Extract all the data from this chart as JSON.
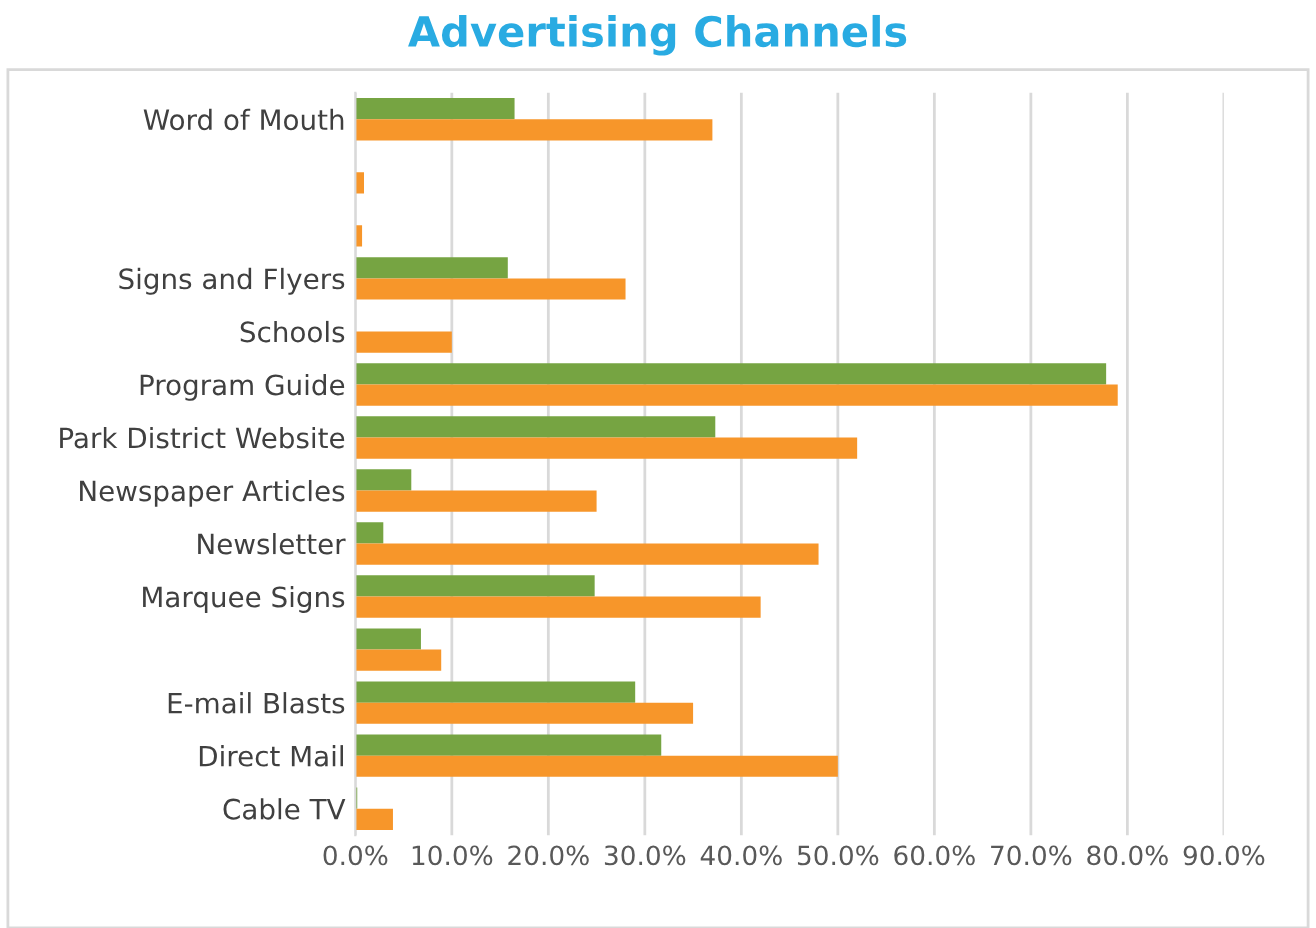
{
  "chart_data": {
    "type": "bar",
    "orientation": "horizontal",
    "title": "Advertising Channels",
    "categories": [
      "Word of Mouth",
      null,
      null,
      "Signs and Flyers",
      "Schools",
      "Program Guide",
      "Park District Website",
      "Newspaper Articles",
      "Newsletter",
      "Marquee Signs",
      null,
      "E-mail Blasts",
      "Direct Mail",
      "Cable TV"
    ],
    "series": [
      {
        "color": "#76a442",
        "values": [
          16.5,
          0,
          0,
          15.8,
          0,
          77.8,
          37.3,
          5.8,
          2.9,
          24.8,
          6.8,
          29,
          31.7,
          0.2
        ]
      },
      {
        "color": "#f7962a",
        "values": [
          37,
          0.9,
          0.7,
          28,
          10,
          79,
          52,
          25,
          48,
          42,
          8.9,
          35,
          50,
          3.9
        ]
      }
    ],
    "xlim": [
      0,
      90
    ],
    "xticks": [
      {
        "value": 0,
        "label": "0.0%"
      },
      {
        "value": 10,
        "label": "10.0%"
      },
      {
        "value": 20,
        "label": "20.0%"
      },
      {
        "value": 30,
        "label": "30.0%"
      },
      {
        "value": 40,
        "label": "40.0%"
      },
      {
        "value": 50,
        "label": "50.0%"
      },
      {
        "value": 60,
        "label": "60.0%"
      },
      {
        "value": 70,
        "label": "70.0%"
      },
      {
        "value": 80,
        "label": "80.0%"
      },
      {
        "value": 90,
        "label": "90.0%"
      }
    ],
    "grid": "x",
    "legend": false
  }
}
